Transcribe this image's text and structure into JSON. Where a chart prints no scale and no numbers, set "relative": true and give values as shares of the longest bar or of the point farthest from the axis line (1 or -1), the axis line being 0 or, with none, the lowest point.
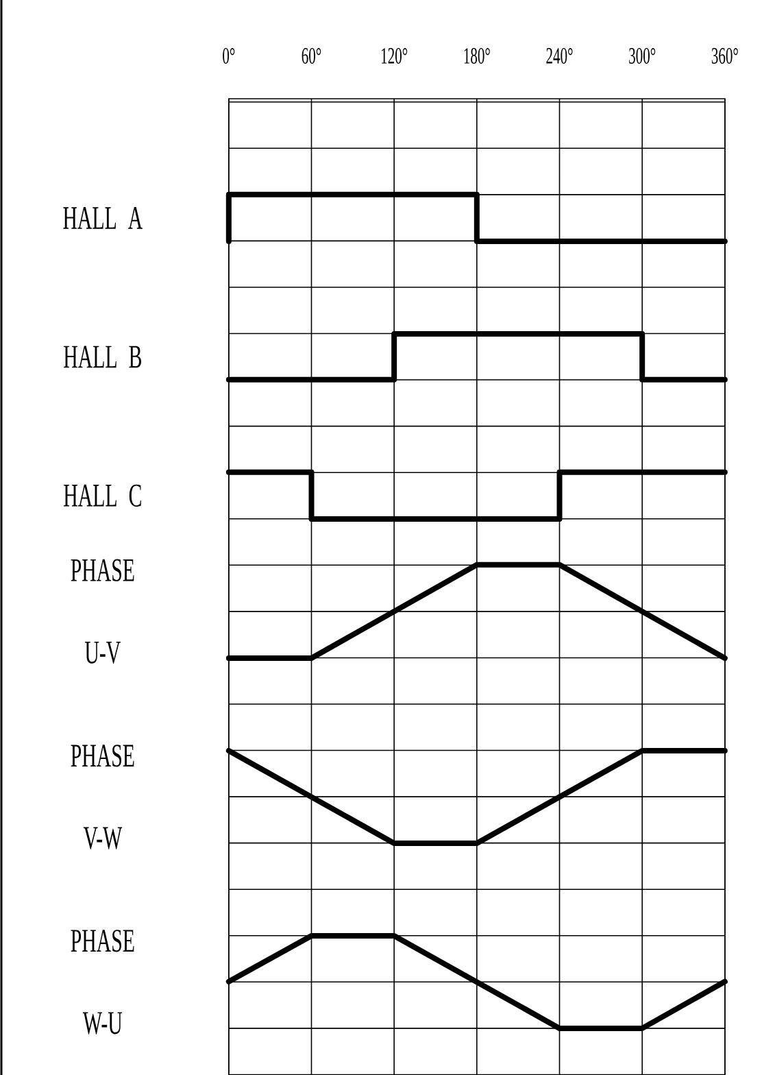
{
  "chart_data": {
    "type": "line",
    "relative": true,
    "grid": true,
    "xlim": [
      0,
      360
    ],
    "xticks": [
      {
        "value": 0,
        "label": "0°"
      },
      {
        "value": 60,
        "label": "60°"
      },
      {
        "value": 120,
        "label": "120°"
      },
      {
        "value": 180,
        "label": "180°"
      },
      {
        "value": 240,
        "label": "240°"
      },
      {
        "value": 300,
        "label": "300°"
      },
      {
        "value": 360,
        "label": "360°"
      }
    ],
    "series": [
      {
        "name": "HALL A",
        "color": "#000000",
        "x": [
          0,
          0,
          180,
          180,
          360
        ],
        "values": [
          0.944,
          1,
          1,
          0.944,
          0.944
        ]
      },
      {
        "name": "HALL B",
        "color": "#000000",
        "x": [
          0,
          120,
          120,
          300,
          300,
          360
        ],
        "values": [
          0.778,
          0.778,
          0.833,
          0.833,
          0.778,
          0.778
        ]
      },
      {
        "name": "HALL C",
        "color": "#000000",
        "x": [
          0,
          60,
          60,
          240,
          240,
          360
        ],
        "values": [
          0.667,
          0.667,
          0.611,
          0.611,
          0.667,
          0.667
        ]
      },
      {
        "name": "PHASE U-V",
        "color": "#000000",
        "x": [
          0,
          60,
          180,
          240,
          360
        ],
        "values": [
          0.444,
          0.444,
          0.556,
          0.556,
          0.444
        ]
      },
      {
        "name": "PHASE V-W",
        "color": "#000000",
        "x": [
          0,
          120,
          180,
          300,
          360
        ],
        "values": [
          0.333,
          0.222,
          0.222,
          0.333,
          0.333
        ]
      },
      {
        "name": "PHASE W-U",
        "color": "#000000",
        "x": [
          0,
          60,
          120,
          240,
          300,
          360
        ],
        "values": [
          0.056,
          0.111,
          0.111,
          0,
          0,
          0.056
        ]
      }
    ]
  }
}
